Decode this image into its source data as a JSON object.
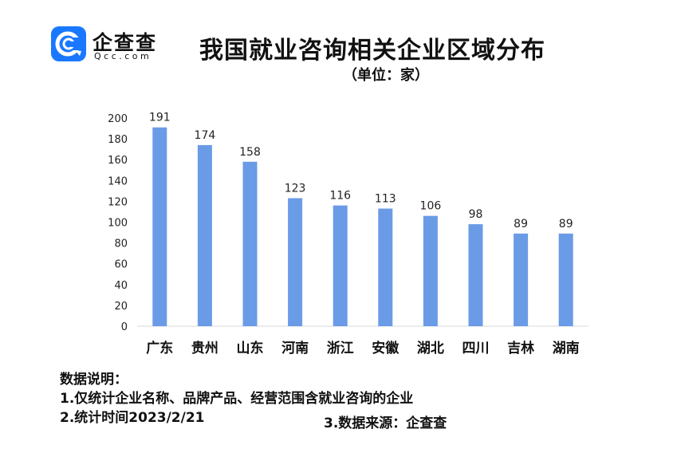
{
  "logo": {
    "name_cn": "企查查",
    "name_en": "Qcc.com",
    "icon": "qcc-c-logo-icon",
    "color": "#1a78ff"
  },
  "title": "我国就业咨询相关企业区域分布",
  "unit": "（单位：家）",
  "chart_data": {
    "type": "bar",
    "title": "我国就业咨询相关企业区域分布",
    "ylabel": "（单位：家）",
    "categories": [
      "广东",
      "贵州",
      "山东",
      "河南",
      "浙江",
      "安徽",
      "湖北",
      "四川",
      "吉林",
      "湖南"
    ],
    "values": [
      191,
      174,
      158,
      123,
      116,
      113,
      106,
      98,
      89,
      89
    ],
    "ylim": [
      0,
      200
    ],
    "yticks": [
      0,
      20,
      40,
      60,
      80,
      100,
      120,
      140,
      160,
      180,
      200
    ],
    "grid": false,
    "bar_color": "#6a9be6"
  },
  "notes": {
    "heading": "数据说明：",
    "line1": "1.仅统计企业名称、品牌产品、经营范围含就业咨询的企业",
    "line2": "2.统计时间2023/2/21",
    "line3": "3.数据来源：企查查"
  }
}
